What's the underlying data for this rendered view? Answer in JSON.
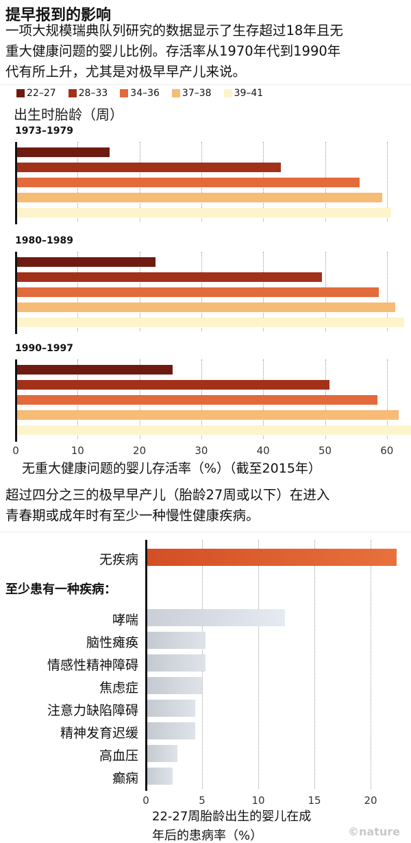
{
  "title": "提早报到的影响",
  "intro_lines": [
    "一项大规模瑞典队列研究的数据显示了生存超过18年且无",
    "重大健康问题的婴儿比例。存活率从1970年代到1990年",
    "代有所上升，尤其是对极早早产儿来说。"
  ],
  "middle_lines": [
    "超过四分之三的极早早产儿（胎龄27周或以下）在进入",
    "青春期或成年时有至少一种慢性健康疾病。"
  ],
  "watermark": "©nature",
  "chart_data": [
    {
      "type": "bar",
      "orientation": "horizontal",
      "legend_title": "出生时胎龄（周）",
      "legend_position": "top-left",
      "series": [
        {
          "name": "22–27",
          "color": "#6e1a10",
          "values": [
            15.2,
            22.6,
            25.4
          ]
        },
        {
          "name": "28–33",
          "color": "#a2311a",
          "values": [
            42.9,
            49.5,
            50.7
          ]
        },
        {
          "name": "34–36",
          "color": "#e36a3b",
          "values": [
            55.6,
            58.7,
            58.5
          ]
        },
        {
          "name": "37–38",
          "color": "#f6bb75",
          "values": [
            59.2,
            61.3,
            61.9
          ]
        },
        {
          "name": "39–41",
          "color": "#fdf4cc",
          "values": [
            60.7,
            62.8,
            64.4
          ]
        }
      ],
      "categories": [
        "1973–1979",
        "1980–1989",
        "1990–1997"
      ],
      "xlabel": "无重大健康问题的婴儿存活率（%）（截至2015年）",
      "xticks": [
        "0",
        "10",
        "20",
        "30",
        "40",
        "50",
        "60"
      ],
      "xlim": [
        0,
        65
      ],
      "grid": true
    },
    {
      "type": "bar",
      "orientation": "horizontal",
      "categories": [
        "无疾病",
        "哮喘",
        "脑性瘫痪",
        "情感性精神障碍",
        "焦虑症",
        "注意力缺陷障碍",
        "精神发育迟缓",
        "高血压",
        "癫痫"
      ],
      "values": [
        22.3,
        12.4,
        5.3,
        5.3,
        5.0,
        4.4,
        4.4,
        2.8,
        2.4
      ],
      "group_label": "至少患有一种疾病：",
      "colors": {
        "highlight": "#dc5a2c",
        "other": "#cdd2da"
      },
      "xlabel_lines": [
        "22-27周胎龄出生的婴儿在成",
        "年后的患病率（%）"
      ],
      "xticks": [
        "0",
        "5",
        "10",
        "15",
        "20"
      ],
      "xlim": [
        0,
        23
      ],
      "grid": true
    }
  ]
}
